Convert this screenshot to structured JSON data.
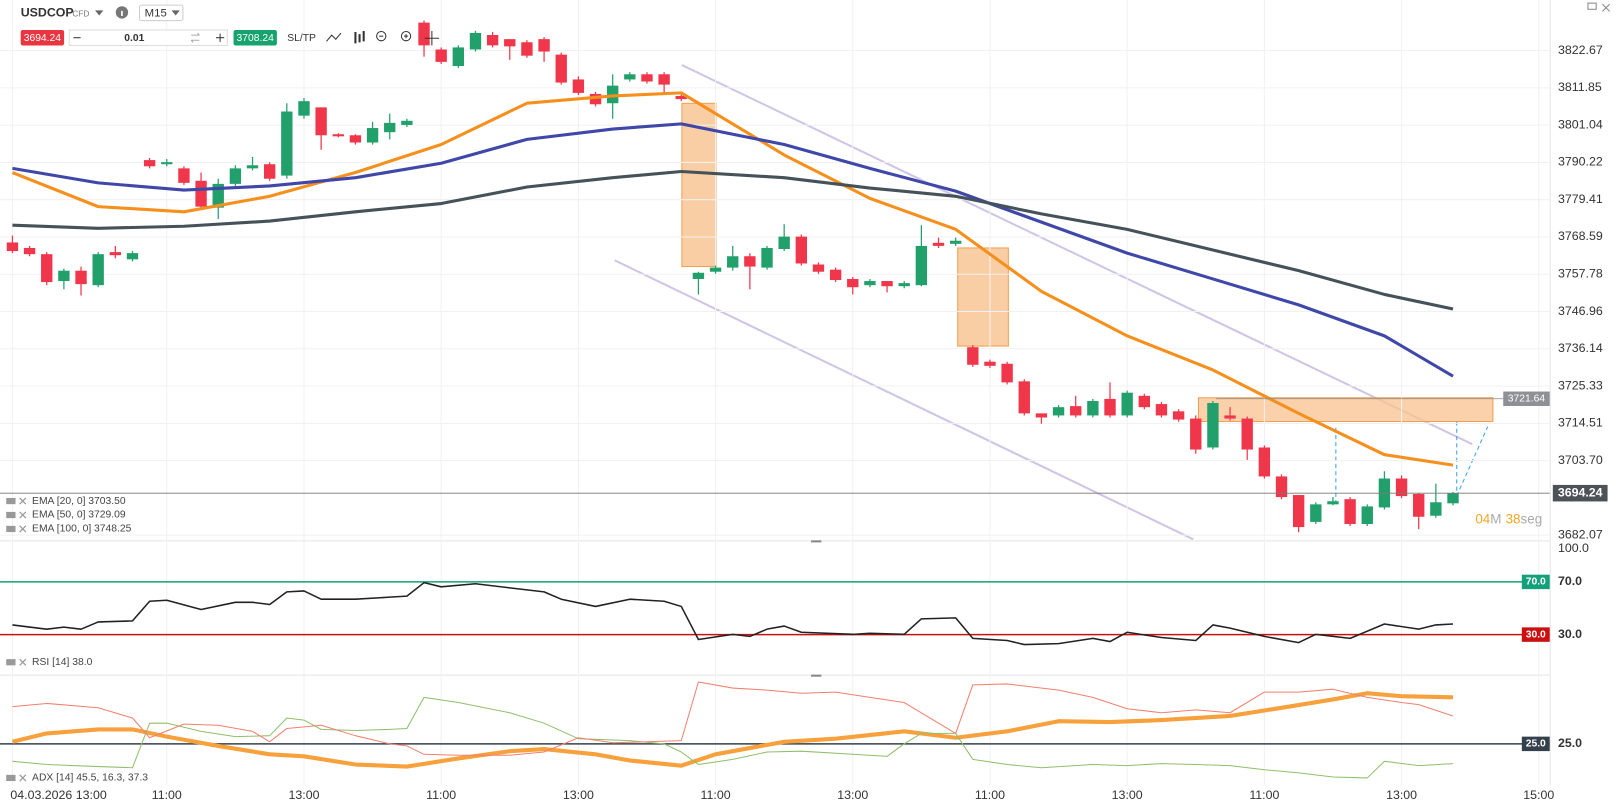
{
  "toolbar": {
    "symbol": "USDCOP",
    "market": "CFD",
    "timeframe": "M15",
    "sell": "3694.24",
    "quantity": "0.01",
    "buy": "3708.24",
    "sltp": "SL/TP"
  },
  "chart_data": [
    {
      "type": "candlestick",
      "up_color": "#22a06b",
      "down_color": "#f0364a",
      "candles": [
        [
          3767.0,
          3769.0,
          3763.9,
          3764.5
        ],
        [
          3765.4,
          3766.0,
          3763.0,
          3763.6
        ],
        [
          3763.6,
          3764.2,
          3754.6,
          3755.5
        ],
        [
          3755.8,
          3759.4,
          3753.4,
          3758.8
        ],
        [
          3758.8,
          3760.0,
          3751.6,
          3754.9
        ],
        [
          3754.6,
          3764.2,
          3754.0,
          3763.6
        ],
        [
          3764.2,
          3766.0,
          3762.4,
          3763.3
        ],
        [
          3762.1,
          3764.5,
          3761.5,
          3763.9
        ],
        [
          3790.9,
          3791.5,
          3788.5,
          3789.1
        ],
        [
          3789.7,
          3791.2,
          3789.1,
          3790.3
        ],
        [
          3788.5,
          3789.1,
          3783.7,
          3784.3
        ],
        [
          3784.9,
          3787.3,
          3776.5,
          3777.4
        ],
        [
          3777.1,
          3785.5,
          3773.8,
          3784.0
        ],
        [
          3784.0,
          3789.4,
          3783.4,
          3788.5
        ],
        [
          3788.5,
          3791.8,
          3787.9,
          3789.4
        ],
        [
          3789.7,
          3790.3,
          3784.9,
          3785.5
        ],
        [
          3786.4,
          3807.4,
          3785.5,
          3805.0
        ],
        [
          3803.8,
          3808.9,
          3802.9,
          3808.0
        ],
        [
          3806.2,
          3806.2,
          3793.9,
          3798.1
        ],
        [
          3798.4,
          3798.7,
          3797.5,
          3797.8
        ],
        [
          3798.1,
          3798.4,
          3795.4,
          3796.0
        ],
        [
          3796.0,
          3802.0,
          3795.4,
          3800.2
        ],
        [
          3799.0,
          3804.4,
          3796.9,
          3801.7
        ],
        [
          3801.1,
          3802.9,
          3800.5,
          3802.3
        ],
        [
          3830.8,
          3831.4,
          3820.9,
          3824.2
        ],
        [
          3823.0,
          3823.6,
          3818.8,
          3819.4
        ],
        [
          3818.2,
          3824.2,
          3817.6,
          3823.6
        ],
        [
          3823.0,
          3828.4,
          3822.4,
          3827.8
        ],
        [
          3827.2,
          3828.1,
          3823.6,
          3824.2
        ],
        [
          3826.0,
          3826.0,
          3820.0,
          3823.9
        ],
        [
          3825.1,
          3825.7,
          3820.6,
          3821.2
        ],
        [
          3826.0,
          3826.6,
          3819.4,
          3822.4
        ],
        [
          3821.5,
          3822.1,
          3812.8,
          3813.4
        ],
        [
          3814.3,
          3815.2,
          3809.8,
          3810.4
        ],
        [
          3810.1,
          3810.7,
          3806.5,
          3807.1
        ],
        [
          3807.4,
          3815.8,
          3802.9,
          3812.5
        ],
        [
          3814.3,
          3816.4,
          3813.7,
          3815.8
        ],
        [
          3815.8,
          3816.4,
          3813.1,
          3813.7
        ],
        [
          3815.8,
          3816.4,
          3809.8,
          3812.8
        ],
        [
          3809.5,
          3810.1,
          3808.0,
          3808.6
        ],
        [
          3756.4,
          3758.5,
          3751.9,
          3758.2
        ],
        [
          3758.5,
          3760.3,
          3757.9,
          3759.7
        ],
        [
          3759.7,
          3766.0,
          3758.8,
          3763.0
        ],
        [
          3763.0,
          3763.9,
          3753.4,
          3760.0
        ],
        [
          3759.7,
          3766.0,
          3759.1,
          3765.4
        ],
        [
          3765.1,
          3772.3,
          3764.5,
          3768.7
        ],
        [
          3768.7,
          3769.3,
          3760.3,
          3760.9
        ],
        [
          3760.6,
          3761.2,
          3757.9,
          3758.5
        ],
        [
          3759.1,
          3759.7,
          3755.5,
          3756.1
        ],
        [
          3756.4,
          3757.0,
          3751.9,
          3754.0
        ],
        [
          3754.6,
          3756.4,
          3754.0,
          3755.8
        ],
        [
          3755.8,
          3755.8,
          3752.5,
          3754.3
        ],
        [
          3754.3,
          3755.8,
          3753.7,
          3755.2
        ],
        [
          3754.6,
          3772.0,
          3754.3,
          3766.0
        ],
        [
          3766.9,
          3768.4,
          3765.4,
          3766.0
        ],
        [
          3766.6,
          3768.4,
          3766.0,
          3767.5
        ],
        [
          3736.6,
          3737.2,
          3730.9,
          3731.5
        ],
        [
          3732.4,
          3733.0,
          3730.6,
          3731.2
        ],
        [
          3731.8,
          3732.4,
          3725.8,
          3726.4
        ],
        [
          3726.7,
          3727.3,
          3716.8,
          3717.4
        ],
        [
          3717.4,
          3717.4,
          3714.4,
          3716.2
        ],
        [
          3716.8,
          3719.8,
          3716.2,
          3719.2
        ],
        [
          3719.5,
          3722.5,
          3716.2,
          3716.8
        ],
        [
          3716.8,
          3721.6,
          3716.2,
          3721.0
        ],
        [
          3721.6,
          3726.4,
          3716.2,
          3716.8
        ],
        [
          3716.8,
          3724.0,
          3716.2,
          3723.4
        ],
        [
          3722.5,
          3723.1,
          3718.6,
          3719.2
        ],
        [
          3720.1,
          3720.7,
          3716.2,
          3716.8
        ],
        [
          3718.0,
          3718.6,
          3715.0,
          3715.6
        ],
        [
          3715.9,
          3716.8,
          3705.7,
          3706.9
        ],
        [
          3707.5,
          3721.0,
          3706.9,
          3720.4
        ],
        [
          3716.8,
          3719.2,
          3715.3,
          3715.9
        ],
        [
          3715.9,
          3716.5,
          3703.9,
          3706.9
        ],
        [
          3707.5,
          3708.1,
          3698.5,
          3699.1
        ],
        [
          3699.1,
          3699.7,
          3692.5,
          3693.1
        ],
        [
          3693.7,
          3693.7,
          3682.9,
          3684.4
        ],
        [
          3685.9,
          3691.6,
          3685.3,
          3691.0
        ],
        [
          3691.0,
          3693.1,
          3690.7,
          3691.9
        ],
        [
          3692.5,
          3693.1,
          3684.7,
          3685.3
        ],
        [
          3685.3,
          3691.0,
          3684.7,
          3690.4
        ],
        [
          3690.1,
          3700.6,
          3689.5,
          3698.5
        ],
        [
          3698.5,
          3699.4,
          3692.8,
          3693.4
        ],
        [
          3694.0,
          3694.3,
          3683.8,
          3687.4
        ],
        [
          3687.7,
          3697.0,
          3687.1,
          3691.6
        ],
        [
          3691.3,
          3694.6,
          3690.7,
          3694.24
        ]
      ],
      "series": [
        {
          "name": "EMA [20, 0] 3703.50",
          "color": "#f5901e",
          "x": [
            0,
            5,
            10,
            15,
            20,
            25,
            30,
            35,
            39,
            45,
            50,
            55,
            60,
            65,
            70,
            75,
            80,
            84
          ],
          "values": [
            3787.3,
            3777.4,
            3775.9,
            3780.4,
            3787.3,
            3795.4,
            3807.4,
            3809.5,
            3810.4,
            3792.4,
            3779.8,
            3770.8,
            3752.8,
            3739.9,
            3730.0,
            3717.4,
            3705.4,
            3702.4
          ]
        },
        {
          "name": "EMA [50, 0] 3729.09",
          "color": "#3f48a8",
          "x": [
            0,
            5,
            10,
            15,
            20,
            25,
            30,
            35,
            39,
            45,
            50,
            55,
            60,
            65,
            70,
            75,
            80,
            84
          ],
          "values": [
            3788.5,
            3784.3,
            3782.2,
            3783.4,
            3785.8,
            3790.0,
            3796.9,
            3799.9,
            3801.4,
            3795.4,
            3788.5,
            3781.9,
            3772.9,
            3763.9,
            3756.4,
            3748.9,
            3739.9,
            3728.2
          ]
        },
        {
          "name": "EMA [100, 0] 3748.25",
          "color": "#46525a",
          "x": [
            0,
            5,
            10,
            15,
            20,
            25,
            30,
            35,
            39,
            45,
            50,
            55,
            60,
            65,
            70,
            75,
            80,
            84
          ],
          "values": [
            3772.0,
            3771.1,
            3771.7,
            3773.2,
            3775.9,
            3778.3,
            3783.1,
            3785.8,
            3787.6,
            3785.8,
            3782.8,
            3780.4,
            3775.3,
            3770.8,
            3764.8,
            3758.8,
            3751.9,
            3747.7
          ]
        }
      ],
      "xlim": [
        -0.723,
        89.639
      ],
      "xticks": [
        {
          "value": 0,
          "label": "04.03.2026 13:00"
        },
        {
          "value": 9,
          "label": "11:00"
        },
        {
          "value": 17,
          "label": "13:00"
        },
        {
          "value": 25,
          "label": "11:00"
        },
        {
          "value": 33,
          "label": "13:00"
        },
        {
          "value": 41,
          "label": "11:00"
        },
        {
          "value": 49,
          "label": "13:00"
        },
        {
          "value": 57,
          "label": "11:00"
        },
        {
          "value": 65,
          "label": "13:00"
        },
        {
          "value": 73,
          "label": "11:00"
        },
        {
          "value": 81,
          "label": "13:00"
        },
        {
          "value": 89,
          "label": "15:00"
        }
      ],
      "ylim": [
        3680.56,
        3832.86
      ],
      "yticks": [
        3822.67,
        3811.85,
        3801.04,
        3790.22,
        3779.41,
        3768.59,
        3757.78,
        3746.96,
        3736.14,
        3725.33,
        3714.51,
        {
          "value": 3703.7,
          "label": "3703.70"
        },
        3682.07
      ],
      "grid": true,
      "last_price": 3694.24,
      "zone_label": 3721.64,
      "countdown": {
        "minutes": "04",
        "min_unit": "M",
        "seconds": "38",
        "sec_unit": "seg"
      }
    },
    {
      "type": "line",
      "legend": "RSI [14] 38.0",
      "series": [
        {
          "color": "#222222",
          "x": [
            0,
            2,
            3,
            4,
            5,
            7,
            8,
            9,
            11,
            13,
            14,
            15,
            16,
            17,
            18,
            20,
            22,
            23,
            24,
            25,
            27,
            29,
            31,
            32,
            34,
            36,
            38,
            39,
            40,
            42,
            43,
            44,
            45,
            46,
            49,
            50,
            52,
            53,
            55,
            56,
            58,
            59,
            61,
            63,
            64,
            65,
            67,
            69,
            70,
            71,
            73,
            75,
            76,
            78,
            80,
            82,
            83,
            84
          ],
          "values": [
            37.3,
            34.1,
            35.7,
            34.1,
            39.6,
            40.4,
            55.3,
            56.1,
            49.0,
            54.5,
            54.5,
            52.9,
            62.4,
            63.1,
            56.9,
            56.9,
            58.4,
            59.2,
            69.4,
            66.3,
            68.6,
            65.5,
            62.4,
            56.9,
            51.4,
            56.9,
            55.3,
            51.4,
            26.3,
            30.2,
            28.6,
            34.1,
            36.5,
            31.8,
            30.2,
            31.0,
            30.2,
            42.0,
            42.7,
            27.1,
            25.5,
            22.4,
            23.1,
            27.1,
            24.7,
            31.8,
            27.8,
            25.5,
            37.3,
            34.9,
            28.6,
            23.9,
            30.2,
            27.1,
            38.0,
            34.1,
            37.3,
            38.0
          ]
        }
      ],
      "ylim": [
        0,
        100
      ],
      "yticks": [
        {
          "value": 100,
          "label": "100.0"
        },
        {
          "value": 70,
          "label": "70.0"
        },
        {
          "value": 30,
          "label": "30.0"
        }
      ],
      "levels": [
        {
          "value": 70,
          "label": "70.0",
          "color": "#13a07a"
        },
        {
          "value": 30,
          "label": "30.0",
          "color": "#cc1010"
        }
      ]
    },
    {
      "type": "line",
      "legend": "ADX [14] 45.5, 16.3, 37.3",
      "series": [
        {
          "color": "#f7a13d",
          "x": [
            0,
            2,
            5,
            7,
            9,
            12,
            15,
            17,
            20,
            23,
            26,
            29,
            31,
            34,
            36,
            39,
            41,
            45,
            48,
            52,
            55,
            58,
            61,
            64,
            67,
            71,
            74,
            77,
            79,
            81,
            84
          ],
          "values": [
            25.9,
            29.6,
            31.4,
            31.4,
            28.2,
            24.1,
            20.4,
            19.5,
            15.9,
            15.0,
            18.6,
            21.8,
            22.7,
            20.4,
            17.7,
            15.4,
            20.4,
            25.9,
            27.3,
            30.5,
            27.7,
            30.5,
            35.0,
            34.6,
            35.5,
            37.3,
            40.9,
            44.6,
            47.3,
            46.0,
            45.5
          ]
        },
        {
          "color": "#8fbf6a",
          "x": [
            0,
            2,
            5,
            7,
            8,
            9,
            11,
            13,
            15,
            16,
            17,
            18,
            20,
            22,
            23,
            24,
            26,
            29,
            31,
            33,
            36,
            38,
            39,
            40,
            42,
            44,
            46,
            49,
            51,
            52,
            53,
            55,
            56,
            58,
            60,
            63,
            65,
            67,
            69,
            71,
            73,
            75,
            77,
            79,
            80,
            82,
            84
          ],
          "values": [
            17.3,
            15.9,
            15.0,
            14.5,
            34.1,
            34.1,
            30.5,
            28.2,
            28.6,
            36.4,
            35.5,
            31.4,
            30.9,
            31.4,
            31.8,
            45.5,
            43.2,
            38.7,
            34.1,
            27.3,
            26.4,
            25.0,
            21.4,
            15.9,
            18.2,
            21.4,
            21.8,
            20.4,
            19.5,
            25.0,
            29.6,
            29.6,
            18.2,
            15.9,
            14.5,
            15.9,
            15.4,
            16.3,
            15.9,
            15.4,
            13.6,
            12.2,
            10.4,
            10.0,
            17.3,
            15.4,
            16.3
          ]
        },
        {
          "color": "#f08070",
          "x": [
            0,
            2,
            5,
            7,
            8,
            10,
            12,
            14,
            15,
            16,
            18,
            20,
            22,
            23,
            24,
            26,
            29,
            31,
            33,
            35,
            37,
            39,
            40,
            42,
            44,
            46,
            48,
            50,
            52,
            54,
            55,
            56,
            58,
            61,
            63,
            65,
            67,
            69,
            71,
            73,
            75,
            77,
            79,
            81,
            82,
            84
          ],
          "values": [
            41.4,
            42.8,
            40.9,
            36.4,
            27.7,
            33.7,
            33.2,
            30.5,
            25.9,
            31.8,
            33.2,
            28.6,
            25.0,
            24.1,
            20.4,
            20.0,
            20.0,
            21.4,
            27.7,
            25.5,
            25.9,
            26.4,
            52.3,
            49.6,
            48.7,
            47.3,
            47.8,
            45.5,
            43.2,
            34.1,
            29.6,
            51.0,
            51.4,
            48.7,
            45.5,
            40.5,
            38.7,
            40.0,
            38.7,
            47.8,
            47.8,
            49.1,
            45.5,
            43.2,
            42.3,
            37.3
          ]
        }
      ],
      "ylim": [
        6.8,
        54.6
      ],
      "yticks": [
        {
          "value": 25,
          "label": "25.0"
        }
      ],
      "levels": [
        {
          "value": 25,
          "label": "25.0",
          "color": "#34414d"
        }
      ]
    }
  ]
}
